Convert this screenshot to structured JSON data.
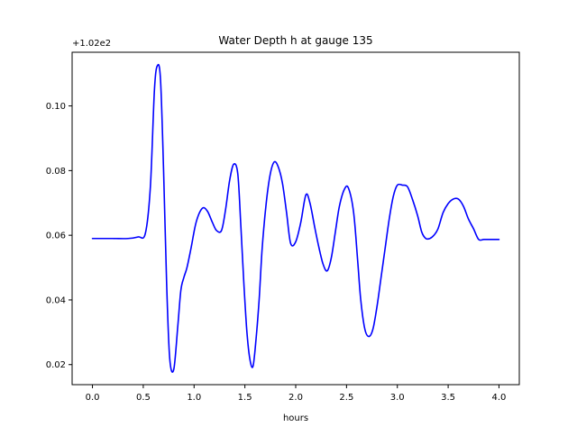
{
  "chart_data": {
    "type": "line",
    "title": "Water Depth h at gauge 135",
    "xlabel": "hours",
    "ylabel": "",
    "offset_label": "+1.02e2",
    "xlim": [
      -0.2,
      4.2
    ],
    "ylim": [
      0.0138,
      0.1166
    ],
    "x_ticks": [
      {
        "value": 0.0,
        "label": "0.0"
      },
      {
        "value": 0.5,
        "label": "0.5"
      },
      {
        "value": 1.0,
        "label": "1.0"
      },
      {
        "value": 1.5,
        "label": "1.5"
      },
      {
        "value": 2.0,
        "label": "2.0"
      },
      {
        "value": 2.5,
        "label": "2.5"
      },
      {
        "value": 3.0,
        "label": "3.0"
      },
      {
        "value": 3.5,
        "label": "3.5"
      },
      {
        "value": 4.0,
        "label": "4.0"
      }
    ],
    "y_ticks": [
      {
        "value": 0.02,
        "label": "0.02"
      },
      {
        "value": 0.04,
        "label": "0.04"
      },
      {
        "value": 0.06,
        "label": "0.06"
      },
      {
        "value": 0.08,
        "label": "0.08"
      },
      {
        "value": 0.1,
        "label": "0.10"
      }
    ],
    "grid": false,
    "series": [
      {
        "color": "#0000ff",
        "x": [
          0.0,
          0.2,
          0.35,
          0.45,
          0.52,
          0.57,
          0.61,
          0.64,
          0.67,
          0.7,
          0.73,
          0.76,
          0.8,
          0.84,
          0.87,
          0.9,
          0.93,
          0.97,
          1.02,
          1.08,
          1.13,
          1.18,
          1.22,
          1.27,
          1.31,
          1.35,
          1.39,
          1.43,
          1.46,
          1.49,
          1.52,
          1.55,
          1.58,
          1.61,
          1.64,
          1.67,
          1.71,
          1.75,
          1.79,
          1.83,
          1.87,
          1.91,
          1.95,
          2.0,
          2.05,
          2.1,
          2.14,
          2.19,
          2.23,
          2.27,
          2.31,
          2.35,
          2.39,
          2.43,
          2.48,
          2.52,
          2.57,
          2.61,
          2.64,
          2.68,
          2.72,
          2.76,
          2.8,
          2.84,
          2.88,
          2.92,
          2.96,
          3.0,
          3.05,
          3.1,
          3.15,
          3.2,
          3.24,
          3.28,
          3.32,
          3.36,
          3.4,
          3.45,
          3.5,
          3.55,
          3.6,
          3.65,
          3.7,
          3.75,
          3.8,
          3.85,
          3.9,
          3.95,
          4.0
        ],
        "y": [
          0.059,
          0.059,
          0.059,
          0.0595,
          0.0605,
          0.075,
          0.105,
          0.1125,
          0.108,
          0.08,
          0.045,
          0.022,
          0.0185,
          0.032,
          0.043,
          0.047,
          0.05,
          0.056,
          0.064,
          0.0683,
          0.0675,
          0.064,
          0.0615,
          0.0615,
          0.068,
          0.077,
          0.082,
          0.079,
          0.063,
          0.045,
          0.03,
          0.0215,
          0.0195,
          0.028,
          0.04,
          0.056,
          0.07,
          0.079,
          0.0827,
          0.081,
          0.076,
          0.067,
          0.0575,
          0.058,
          0.064,
          0.0725,
          0.07,
          0.062,
          0.056,
          0.051,
          0.049,
          0.053,
          0.061,
          0.069,
          0.0743,
          0.0745,
          0.067,
          0.052,
          0.04,
          0.031,
          0.0287,
          0.031,
          0.038,
          0.047,
          0.056,
          0.065,
          0.072,
          0.0755,
          0.0755,
          0.075,
          0.071,
          0.066,
          0.061,
          0.059,
          0.059,
          0.06,
          0.062,
          0.067,
          0.0698,
          0.0712,
          0.0712,
          0.069,
          0.065,
          0.062,
          0.0587,
          0.0587,
          0.0587,
          0.0587,
          0.0587
        ]
      }
    ]
  }
}
